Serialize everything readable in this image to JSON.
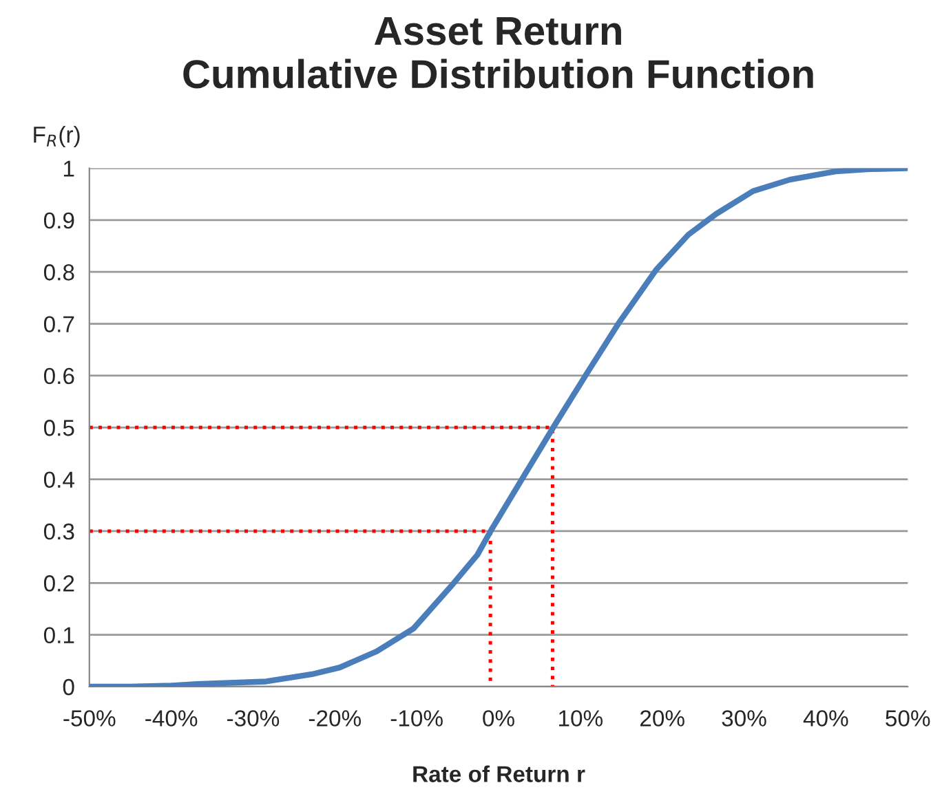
{
  "chart_data": {
    "type": "line",
    "title": "Asset Return\nCumulative Distribution Function",
    "xlabel": "Rate of Return r",
    "ylabel": "F$_{R}$(r)",
    "series": [
      {
        "color": "#4a7ebb",
        "x": [
          -50,
          -45,
          -40,
          -36.8,
          -28.4,
          -22.8,
          -19.4,
          -14.9,
          -10.4,
          -5.9,
          -2.6,
          -0.9,
          3.0,
          6.8,
          10.9,
          14.8,
          19.3,
          23.2,
          26.6,
          31.1,
          35.6,
          41.2,
          45,
          49.9
        ],
        "values": [
          0,
          0,
          0.002,
          0.005,
          0.01,
          0.024,
          0.037,
          0.068,
          0.112,
          0.192,
          0.254,
          0.302,
          0.404,
          0.503,
          0.607,
          0.704,
          0.805,
          0.872,
          0.912,
          0.956,
          0.978,
          0.994,
          0.998,
          1.0
        ]
      },
      {
        "color": "#ff0000",
        "line_style": "dotted",
        "x": [
          -50,
          -1,
          -1
        ],
        "values": [
          0.3,
          0.3,
          0
        ]
      },
      {
        "color": "#ff0000",
        "line_style": "dotted",
        "x": [
          -50,
          6.6,
          6.6
        ],
        "values": [
          0.5,
          0.5,
          0
        ]
      }
    ],
    "xlim": [
      -50,
      50
    ],
    "xticks": [
      {
        "value": -50,
        "label": "-50%"
      },
      {
        "value": -40,
        "label": "-40%"
      },
      {
        "value": -30,
        "label": "-30%"
      },
      {
        "value": -20,
        "label": "-20%"
      },
      {
        "value": -10,
        "label": "-10%"
      },
      {
        "value": 0,
        "label": "0%"
      },
      {
        "value": 10,
        "label": "10%"
      },
      {
        "value": 20,
        "label": "20%"
      },
      {
        "value": 30,
        "label": "30%"
      },
      {
        "value": 40,
        "label": "40%"
      },
      {
        "value": 50,
        "label": "50%"
      }
    ],
    "ylim": [
      0,
      1
    ],
    "yticks": [
      0,
      0.1,
      0.2,
      0.3,
      0.4,
      0.5,
      0.6,
      0.7,
      0.8,
      0.9,
      1
    ],
    "grid": "y",
    "line_style": "solid",
    "marker": "none"
  }
}
